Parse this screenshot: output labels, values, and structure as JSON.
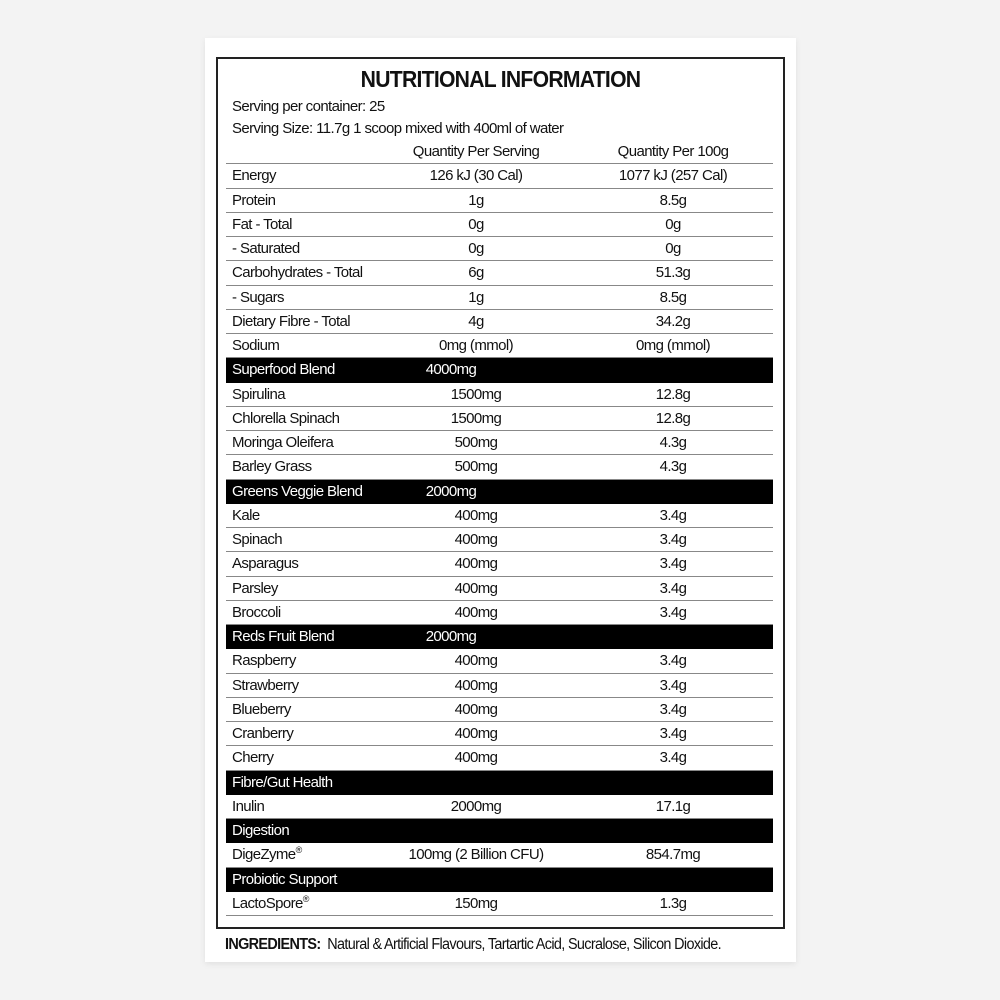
{
  "title": "NUTRITIONAL INFORMATION",
  "servings_per_container": "Serving per container: 25",
  "serving_size": "Serving Size: 11.7g 1 scoop mixed with 400ml of water",
  "columns": [
    "",
    "Quantity Per Serving",
    "Quantity Per 100g"
  ],
  "rows": [
    {
      "label": "Energy",
      "serving": "126 kJ (30 Cal)",
      "per100": "1077 kJ (257 Cal)"
    },
    {
      "label": "Protein",
      "serving": "1g",
      "per100": "8.5g"
    },
    {
      "label": "Fat - Total",
      "serving": "0g",
      "per100": "0g"
    },
    {
      "label": " - Saturated",
      "serving": "0g",
      "per100": "0g"
    },
    {
      "label": "Carbohydrates - Total",
      "serving": "6g",
      "per100": "51.3g"
    },
    {
      "label": " - Sugars",
      "serving": "1g",
      "per100": "8.5g"
    },
    {
      "label": "Dietary Fibre - Total",
      "serving": "4g",
      "per100": "34.2g"
    },
    {
      "label": "Sodium",
      "serving": "0mg (mmol)",
      "per100": "0mg (mmol)"
    },
    {
      "label": "Superfood Blend",
      "serving": "4000mg",
      "section": true
    },
    {
      "label": "Spirulina",
      "serving": "1500mg",
      "per100": "12.8g"
    },
    {
      "label": "Chlorella Spinach",
      "serving": "1500mg",
      "per100": "12.8g"
    },
    {
      "label": "Moringa Oleifera",
      "serving": "500mg",
      "per100": "4.3g"
    },
    {
      "label": "Barley Grass",
      "serving": "500mg",
      "per100": "4.3g"
    },
    {
      "label": "Greens Veggie Blend",
      "serving": "2000mg",
      "section": true
    },
    {
      "label": "Kale",
      "serving": "400mg",
      "per100": "3.4g"
    },
    {
      "label": "Spinach",
      "serving": "400mg",
      "per100": "3.4g"
    },
    {
      "label": "Asparagus",
      "serving": "400mg",
      "per100": "3.4g"
    },
    {
      "label": "Parsley",
      "serving": "400mg",
      "per100": "3.4g"
    },
    {
      "label": "Broccoli",
      "serving": "400mg",
      "per100": "3.4g"
    },
    {
      "label": "Reds Fruit Blend",
      "serving": "2000mg",
      "section": true
    },
    {
      "label": "Raspberry",
      "serving": "400mg",
      "per100": "3.4g"
    },
    {
      "label": "Strawberry",
      "serving": "400mg",
      "per100": "3.4g"
    },
    {
      "label": "Blueberry",
      "serving": "400mg",
      "per100": "3.4g"
    },
    {
      "label": "Cranberry",
      "serving": "400mg",
      "per100": "3.4g"
    },
    {
      "label": "Cherry",
      "serving": "400mg",
      "per100": "3.4g"
    },
    {
      "label": "Fibre/Gut Health",
      "serving": "",
      "section": true
    },
    {
      "label": "Inulin",
      "serving": "2000mg",
      "per100": "17.1g"
    },
    {
      "label": "Digestion",
      "serving": "",
      "section": true
    },
    {
      "label": "DigeZyme",
      "mark": "®",
      "serving": "100mg (2 Billion CFU)",
      "per100": "854.7mg"
    },
    {
      "label": "Probiotic Support",
      "serving": "",
      "section": true
    },
    {
      "label": "LactoSpore",
      "mark": "®",
      "serving": "150mg",
      "per100": "1.3g"
    }
  ],
  "ingredients_label": "INGREDIENTS:",
  "ingredients": "Natural & Artificial Flavours, Tartartic Acid, Sucralose, Silicon Dioxide."
}
